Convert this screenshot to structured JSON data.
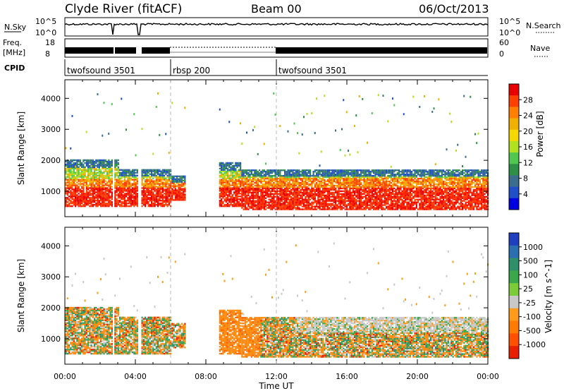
{
  "header": {
    "station": "Clyde River (fitACF)",
    "beam": "Beam 00",
    "date": "06/Oct/2013"
  },
  "nsky_panel": {
    "left_label": "N.Sky",
    "right_label": "N.Search",
    "left_ticks": [
      "10^5",
      "10^0"
    ],
    "right_ticks": [
      "10^5",
      "10^0"
    ]
  },
  "freq_panel": {
    "left_label_line1": "Freq.",
    "left_label_line2": "[MHz]",
    "right_label": "Nave",
    "left_ticks": [
      "18",
      "8"
    ],
    "right_ticks": [
      "60",
      "0"
    ]
  },
  "cpid": {
    "label": "CPID",
    "segments": [
      {
        "name": "twofsound 3501",
        "start": 0,
        "end": 6
      },
      {
        "name": "rbsp 200",
        "start": 6,
        "end": 12
      },
      {
        "name": "twofsound 3501",
        "start": 12,
        "end": 24
      }
    ]
  },
  "chart_data": [
    {
      "type": "heatmap",
      "name": "power",
      "xlabel": "",
      "ylabel": "Slant Range [km]",
      "xlim": [
        0,
        24
      ],
      "ylim": [
        180,
        4600
      ],
      "yticks": [
        1000,
        2000,
        3000,
        4000
      ],
      "colorbar_label": "Power [dB]",
      "colorbar_ticks": [
        "28",
        "24",
        "20",
        "16",
        "12",
        "8",
        "4"
      ],
      "colorbar_colors": [
        "#e80000",
        "#ff4000",
        "#ff8000",
        "#f0b000",
        "#f5d800",
        "#b0e020",
        "#50c850",
        "#2f8f46",
        "#3a6e8c",
        "#2050c8",
        "#0000e0"
      ],
      "vertical_markers_hours": [
        6,
        12
      ]
    },
    {
      "type": "heatmap",
      "name": "velocity",
      "xlabel": "Time UT",
      "ylabel": "Slant Range [km]",
      "xlim": [
        0,
        24
      ],
      "ylim": [
        180,
        4600
      ],
      "yticks": [
        1000,
        2000,
        3000,
        4000
      ],
      "xticks": [
        "00:00",
        "04:00",
        "08:00",
        "12:00",
        "16:00",
        "20:00",
        "00:00"
      ],
      "colorbar_label": "Velocity [m s^-1]",
      "colorbar_ticks": [
        "1000",
        "500",
        "100",
        "25",
        "-25",
        "-100",
        "-500",
        "-1000"
      ],
      "colorbar_colors": [
        "#1f3fbf",
        "#2b6fb0",
        "#2f8f6a",
        "#3aa84a",
        "#7ccc3a",
        "#c8c8c8",
        "#ff9a1a",
        "#ff7a00",
        "#ff5000",
        "#e82000"
      ],
      "vertical_markers_hours": [
        6,
        12
      ]
    }
  ]
}
